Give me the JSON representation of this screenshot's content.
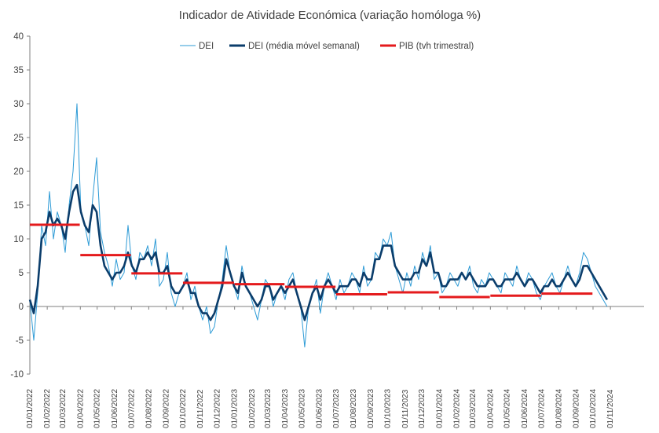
{
  "chart_data": {
    "type": "line",
    "title": "Indicador de Atividade Económica (variação homóloga %)",
    "xlabel": "",
    "ylabel": "",
    "ylim": [
      -10,
      40
    ],
    "yticks": [
      -10,
      -5,
      0,
      5,
      10,
      15,
      20,
      25,
      30,
      35,
      40
    ],
    "x_tick_labels": [
      "01/01/2022",
      "01/02/2022",
      "01/03/2022",
      "01/04/2022",
      "01/05/2022",
      "01/06/2022",
      "01/07/2022",
      "01/08/2022",
      "01/09/2022",
      "01/10/2022",
      "01/11/2022",
      "01/12/2022",
      "01/01/2023",
      "01/02/2023",
      "01/03/2023",
      "01/04/2023",
      "01/05/2023",
      "01/06/2023",
      "01/07/2023",
      "01/08/2023",
      "01/09/2023",
      "01/10/2023",
      "01/11/2023",
      "01/12/2023",
      "01/01/2024",
      "01/02/2024",
      "01/03/2024",
      "01/04/2024",
      "01/05/2024",
      "01/06/2024",
      "01/07/2024",
      "01/08/2024",
      "01/09/2024",
      "01/10/2024",
      "01/11/2024"
    ],
    "legend_position": "top",
    "grid": false,
    "colors": {
      "dei": "#2E9BD6",
      "dei_ma": "#0B3D6B",
      "pib": "#E41A1C",
      "axis": "#7F7F7F"
    },
    "series": [
      {
        "name": "DEI",
        "style": "thin-line",
        "x_start": "01/01/2022",
        "frequency": "weekly",
        "values": [
          1,
          -5,
          2,
          12,
          9,
          17,
          10,
          14,
          12,
          8,
          15,
          20,
          30,
          14,
          12,
          9,
          16,
          22,
          11,
          8,
          6,
          3,
          7,
          4,
          5,
          12,
          6,
          4,
          8,
          7,
          9,
          6,
          10,
          3,
          4,
          8,
          2,
          0,
          2,
          3,
          5,
          1,
          3,
          0,
          -2,
          0,
          -4,
          -3,
          1,
          4,
          9,
          5,
          3,
          1,
          6,
          3,
          2,
          0,
          -2,
          1,
          4,
          3,
          0,
          2,
          3,
          1,
          4,
          5,
          2,
          0,
          -6,
          0,
          2,
          4,
          -1,
          3,
          5,
          3,
          1,
          4,
          2,
          3,
          5,
          4,
          2,
          6,
          3,
          4,
          8,
          7,
          10,
          9,
          11,
          6,
          4,
          2,
          5,
          3,
          6,
          4,
          8,
          6,
          9,
          4,
          5,
          2,
          3,
          5,
          4,
          3,
          5,
          4,
          6,
          3,
          2,
          4,
          3,
          5,
          4,
          3,
          2,
          5,
          4,
          3,
          6,
          4,
          3,
          5,
          4,
          2,
          1,
          3,
          4,
          5,
          3,
          2,
          4,
          6,
          4,
          3,
          5,
          8,
          7,
          5,
          3,
          2,
          1,
          0
        ]
      },
      {
        "name": "DEI (média móvel semanal)",
        "style": "thick-line",
        "x_start": "01/01/2022",
        "frequency": "weekly",
        "values": [
          1,
          -1,
          3,
          10,
          11,
          14,
          12,
          13,
          12,
          10,
          14,
          17,
          18,
          14,
          12,
          11,
          15,
          14,
          9,
          6,
          5,
          4,
          5,
          5,
          6,
          8,
          6,
          5,
          7,
          7,
          8,
          7,
          8,
          5,
          5,
          6,
          3,
          2,
          2,
          3,
          4,
          2,
          2,
          0,
          -1,
          -1,
          -2,
          -1,
          1,
          3,
          7,
          5,
          3,
          2,
          5,
          3,
          2,
          1,
          0,
          1,
          3,
          3,
          1,
          2,
          3,
          2,
          3,
          4,
          2,
          0,
          -2,
          0,
          2,
          3,
          1,
          3,
          4,
          3,
          2,
          3,
          3,
          3,
          4,
          4,
          3,
          5,
          4,
          4,
          7,
          7,
          9,
          9,
          9,
          6,
          5,
          4,
          4,
          4,
          5,
          5,
          7,
          6,
          8,
          5,
          5,
          3,
          3,
          4,
          4,
          4,
          5,
          4,
          5,
          4,
          3,
          3,
          3,
          4,
          4,
          3,
          3,
          4,
          4,
          4,
          5,
          4,
          3,
          4,
          4,
          3,
          2,
          3,
          3,
          4,
          3,
          3,
          4,
          5,
          4,
          3,
          4,
          6,
          6,
          5,
          4,
          3,
          2,
          1
        ]
      },
      {
        "name": "PIB (tvh trimestral)",
        "style": "step",
        "segments": [
          {
            "from": "01/01/2022",
            "to": "31/03/2022",
            "value": 12.1
          },
          {
            "from": "01/04/2022",
            "to": "30/06/2022",
            "value": 7.6
          },
          {
            "from": "01/07/2022",
            "to": "30/09/2022",
            "value": 4.9
          },
          {
            "from": "01/10/2022",
            "to": "31/12/2022",
            "value": 3.5
          },
          {
            "from": "01/01/2023",
            "to": "31/03/2023",
            "value": 3.3
          },
          {
            "from": "01/04/2023",
            "to": "30/06/2023",
            "value": 2.9
          },
          {
            "from": "01/07/2023",
            "to": "30/09/2023",
            "value": 1.8
          },
          {
            "from": "01/10/2023",
            "to": "31/12/2023",
            "value": 2.1
          },
          {
            "from": "01/01/2024",
            "to": "31/03/2024",
            "value": 1.4
          },
          {
            "from": "01/04/2024",
            "to": "30/06/2024",
            "value": 1.6
          },
          {
            "from": "01/07/2024",
            "to": "30/09/2024",
            "value": 1.9
          }
        ]
      }
    ]
  }
}
